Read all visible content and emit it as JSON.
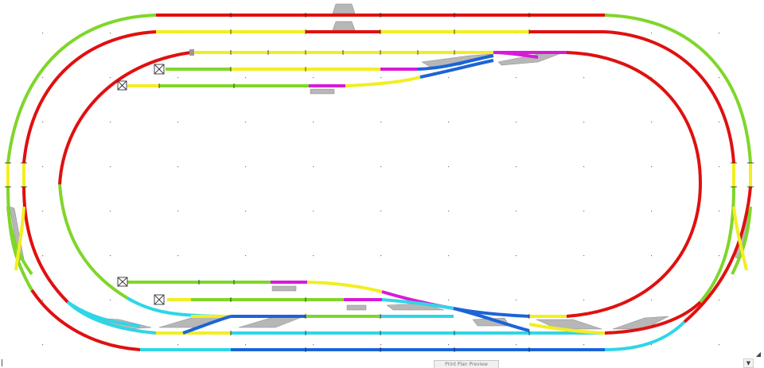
{
  "window": {
    "status_text": "Print Plan Preview",
    "scroll_down_glyph": "▼",
    "scroll_right_glyph": "◢"
  },
  "colors": {
    "background": "#ffffff",
    "track_red": "#e01010",
    "track_green": "#7fd62a",
    "track_yellow": "#f2ee22",
    "track_magenta": "#d81ad8",
    "track_cyan": "#2fd6e6",
    "track_blue": "#1c64d6",
    "platform_gray": "#b7b7b7",
    "tie_dark": "#333333"
  },
  "icons": {
    "buffer_stop": "buffer-stop-icon",
    "platform": "platform-icon",
    "turnout": "turnout-icon"
  }
}
